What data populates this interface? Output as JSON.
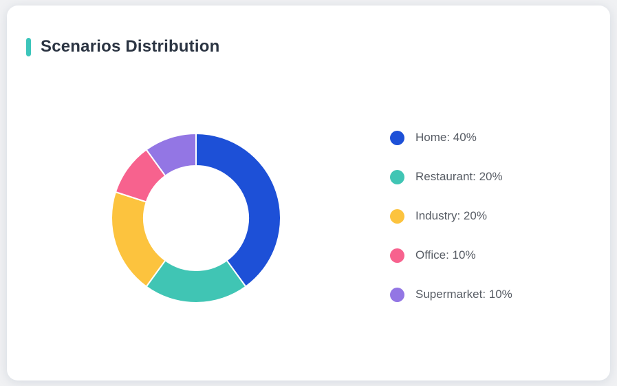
{
  "card": {
    "title": "Scenarios Distribution",
    "accent_color": "#3cc5bb"
  },
  "chart_data": {
    "type": "pie",
    "subtype": "donut",
    "title": "Scenarios Distribution",
    "categories": [
      "Home",
      "Restaurant",
      "Industry",
      "Office",
      "Supermarket"
    ],
    "values": [
      40,
      20,
      20,
      10,
      10
    ],
    "unit": "%",
    "colors": [
      "#1d50d7",
      "#40c5b4",
      "#fcc33e",
      "#f7628e",
      "#9376e4"
    ],
    "legend_labels": [
      "Home: 40%",
      "Restaurant: 20%",
      "Industry: 20%",
      "Office: 10%",
      "Supermarket: 10%"
    ],
    "legend_position": "right",
    "start_angle_deg": 0,
    "direction": "clockwise",
    "inner_radius_ratio": 0.62,
    "segment_border_color": "#ffffff",
    "segment_border_width": 2
  }
}
